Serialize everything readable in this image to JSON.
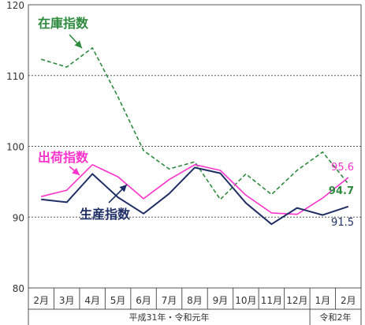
{
  "chart_data": {
    "type": "line",
    "title": "",
    "ylim": [
      80,
      120
    ],
    "yticks": [
      80,
      90,
      100,
      110,
      120
    ],
    "grid": "horizontal dashed",
    "categories": [
      "2月",
      "3月",
      "4月",
      "5月",
      "6月",
      "7月",
      "8月",
      "9月",
      "10月",
      "11月",
      "12月",
      "1月",
      "2月"
    ],
    "year_groups": [
      {
        "label": "平成31年・令和元年",
        "span": 11
      },
      {
        "label": "令和2年",
        "span": 2
      }
    ],
    "series": [
      {
        "name": "在庫指数",
        "color": "#2e8b3e",
        "style": "dashed",
        "values": [
          112.3,
          111.2,
          113.9,
          107.0,
          99.4,
          96.8,
          97.8,
          92.5,
          96.1,
          93.2,
          96.6,
          99.2,
          94.7
        ],
        "end_label": "94.7"
      },
      {
        "name": "出荷指数",
        "color": "#ff33cc",
        "style": "solid",
        "values": [
          92.9,
          93.8,
          97.4,
          95.7,
          92.6,
          95.3,
          97.4,
          96.6,
          93.1,
          90.6,
          90.4,
          92.7,
          95.6
        ],
        "end_label": "95.6"
      },
      {
        "name": "生産指数",
        "color": "#1f2f66",
        "style": "solid",
        "values": [
          92.5,
          92.1,
          96.1,
          92.8,
          90.5,
          93.3,
          97.0,
          96.2,
          92.0,
          89.0,
          91.3,
          90.3,
          91.5
        ],
        "end_label": "91.5"
      }
    ]
  }
}
